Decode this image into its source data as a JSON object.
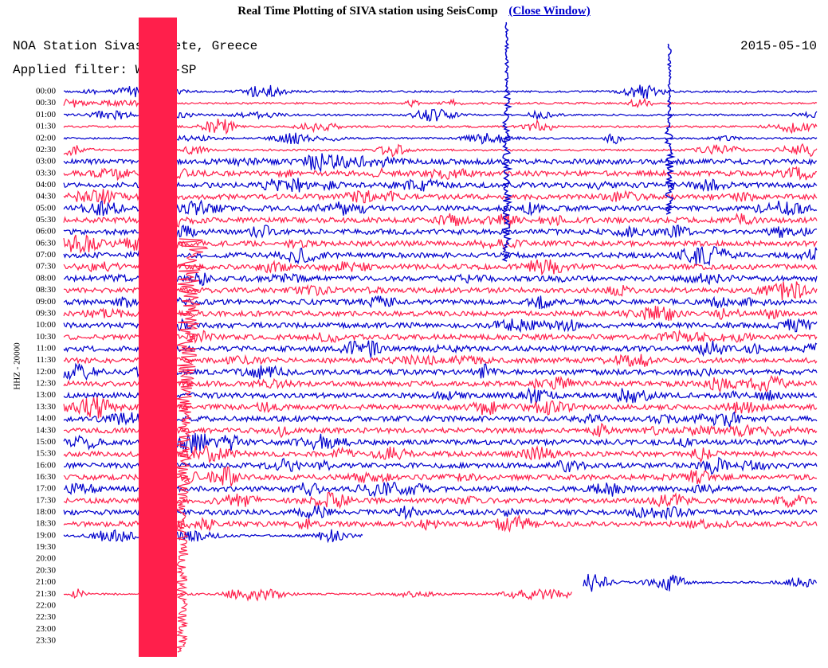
{
  "header": {
    "title": "Real Time Plotting of SIVA station using SeisComp",
    "link": "(Close Window)"
  },
  "plot": {
    "station": "NOA Station Sivas, Crete, Greece",
    "filter": "Applied filter: WWSSN-SP",
    "date": "2015-05-10",
    "axis_label": "HHZ - 20000",
    "hours": [
      "00:00",
      "00:30",
      "01:00",
      "01:30",
      "02:00",
      "02:30",
      "03:00",
      "03:30",
      "04:00",
      "04:30",
      "05:00",
      "05:30",
      "06:00",
      "06:30",
      "07:00",
      "07:30",
      "08:00",
      "08:30",
      "09:00",
      "09:30",
      "10:00",
      "10:30",
      "11:00",
      "11:30",
      "12:00",
      "12:30",
      "13:00",
      "13:30",
      "14:00",
      "14:30",
      "15:00",
      "15:30",
      "16:00",
      "16:30",
      "17:00",
      "17:30",
      "18:00",
      "18:30",
      "19:00",
      "19:30",
      "20:00",
      "20:30",
      "21:00",
      "21:30",
      "22:00",
      "22:30",
      "23:00",
      "23:30"
    ]
  }
}
